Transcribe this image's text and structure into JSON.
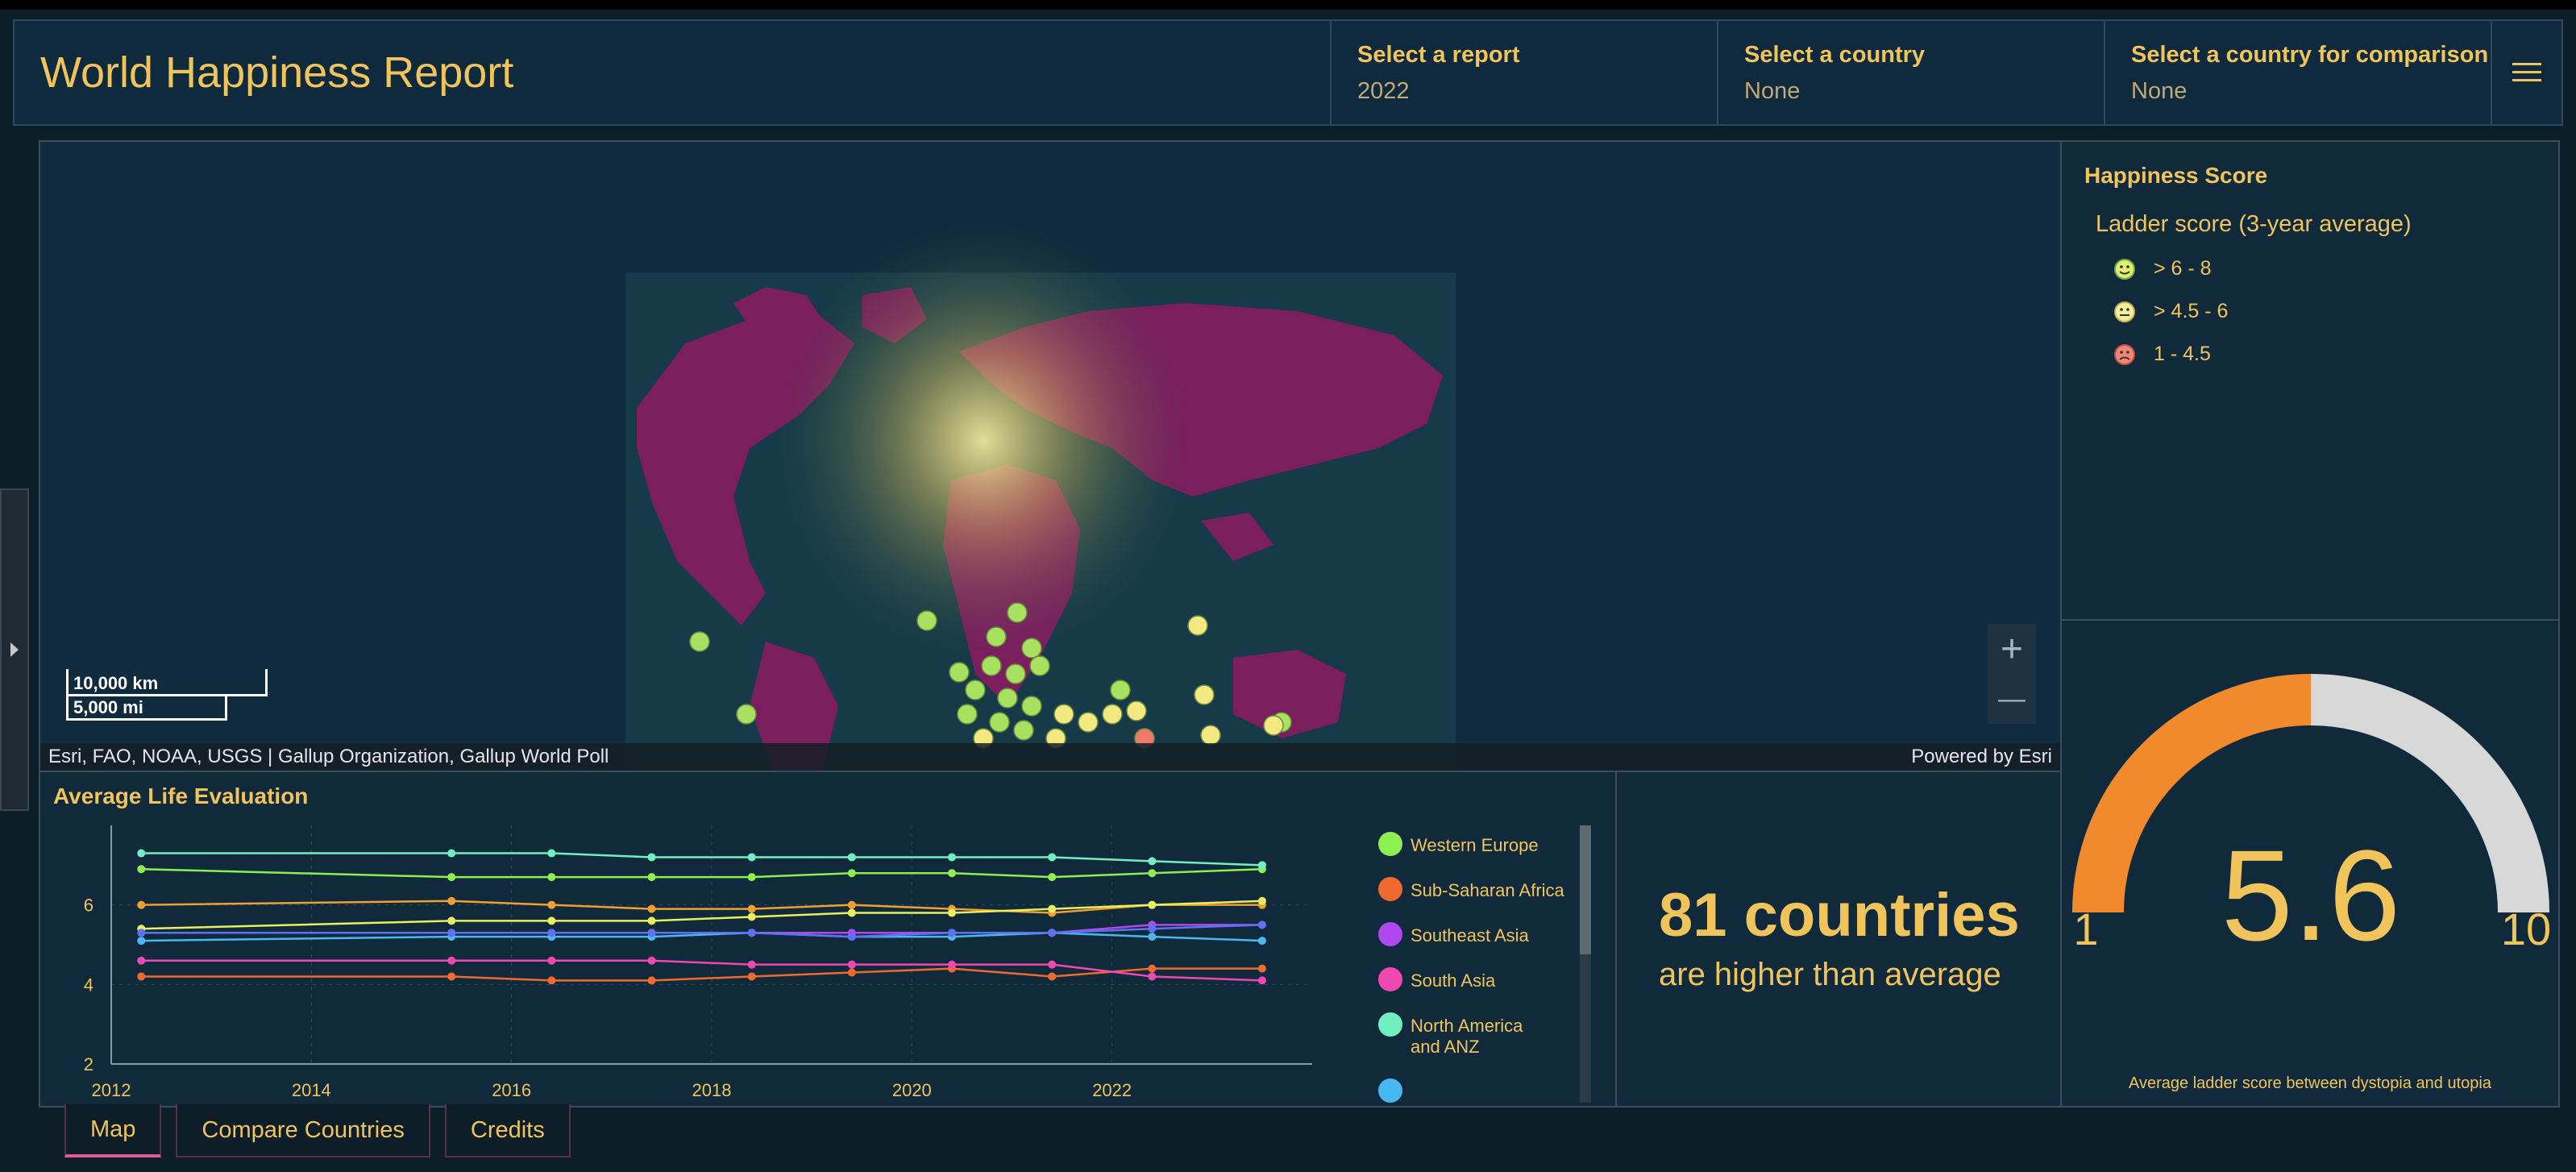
{
  "header": {
    "title": "World Happiness Report",
    "selectors": [
      {
        "label": "Select a report",
        "value": "2022"
      },
      {
        "label": "Select a country",
        "value": "None"
      },
      {
        "label": "Select a country for comparison",
        "value": "None"
      }
    ],
    "menu_icon": "hamburger-icon"
  },
  "map": {
    "attribution_left": "Esri, FAO, NOAA, USGS | Gallup Organization, Gallup World Poll",
    "attribution_right": "Powered by Esri",
    "scale_km": "10,000 km",
    "scale_mi": "5,000 mi",
    "zoom_in": "+",
    "zoom_out": "—"
  },
  "legend": {
    "title": "Happiness Score",
    "subtitle": "Ladder score (3-year average)",
    "items": [
      {
        "label": "> 6 - 8",
        "color": "#c8f060",
        "face": "smile"
      },
      {
        "label": "> 4.5 - 6",
        "color": "#f4f080",
        "face": "neutral"
      },
      {
        "label": "1 - 4.5",
        "color": "#f07a6a",
        "face": "frown"
      }
    ]
  },
  "gauge": {
    "value": "5.6",
    "min": "1",
    "max": "10",
    "fraction": 0.5,
    "caption": "Average ladder score between dystopia and utopia",
    "fill_color": "#f08a2c",
    "track_color": "#d8d8d8"
  },
  "stat": {
    "big": "81 countries",
    "small": "are higher than average"
  },
  "tabs": [
    "Map",
    "Compare Countries",
    "Credits"
  ],
  "chart_data": {
    "type": "line",
    "title": "Average Life Evaluation",
    "xlabel": "",
    "ylabel": "",
    "xlim": [
      2012,
      2024
    ],
    "ylim": [
      2,
      8
    ],
    "xticks": [
      2012,
      2014,
      2016,
      2018,
      2020,
      2022
    ],
    "yticks": [
      2,
      4,
      6
    ],
    "x": [
      2012.3,
      2015.4,
      2016.4,
      2017.4,
      2018.4,
      2019.4,
      2020.4,
      2021.4,
      2022.4,
      2023.5
    ],
    "series": [
      {
        "name": "Western Europe",
        "color": "#8ef050",
        "values": [
          6.9,
          6.7,
          6.7,
          6.7,
          6.7,
          6.8,
          6.8,
          6.7,
          6.8,
          6.9
        ]
      },
      {
        "name": "Sub-Saharan Africa",
        "color": "#f06a30",
        "values": [
          4.2,
          4.2,
          4.1,
          4.1,
          4.2,
          4.3,
          4.4,
          4.2,
          4.4,
          4.4
        ]
      },
      {
        "name": "Southeast Asia",
        "color": "#b048f0",
        "values": [
          5.3,
          5.3,
          5.3,
          5.3,
          5.3,
          5.3,
          5.3,
          5.3,
          5.5,
          5.5
        ]
      },
      {
        "name": "South Asia",
        "color": "#f048b0",
        "values": [
          4.6,
          4.6,
          4.6,
          4.6,
          4.5,
          4.5,
          4.5,
          4.5,
          4.2,
          4.1
        ]
      },
      {
        "name": "North America and ANZ",
        "color": "#70f0c0",
        "values": [
          7.3,
          7.3,
          7.3,
          7.2,
          7.2,
          7.2,
          7.2,
          7.2,
          7.1,
          7.0
        ]
      },
      {
        "color": "#48b8f0",
        "values": [
          5.1,
          5.2,
          5.2,
          5.2,
          5.3,
          5.2,
          5.2,
          5.3,
          5.2,
          5.1
        ]
      },
      {
        "color": "#f0a030",
        "values": [
          6.0,
          6.1,
          6.0,
          5.9,
          5.9,
          6.0,
          5.9,
          5.8,
          6.0,
          6.0
        ]
      },
      {
        "color": "#e8f060",
        "values": [
          5.4,
          5.6,
          5.6,
          5.6,
          5.7,
          5.8,
          5.8,
          5.9,
          6.0,
          6.1
        ]
      },
      {
        "color": "#6070f0",
        "values": [
          5.3,
          5.3,
          5.3,
          5.3,
          5.3,
          5.2,
          5.3,
          5.3,
          5.4,
          5.5
        ]
      }
    ]
  }
}
